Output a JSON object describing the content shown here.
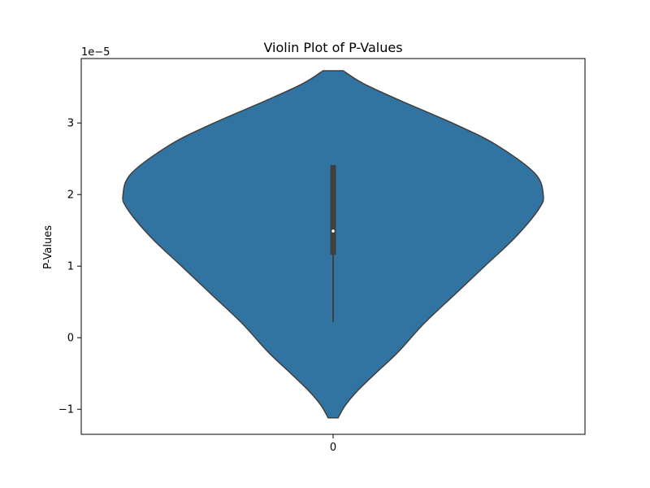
{
  "chart_data": {
    "type": "violin",
    "title": "Violin Plot of P-Values",
    "xlabel": "",
    "ylabel": "P-Values",
    "offset_label": "1e−5",
    "categories": [
      "0"
    ],
    "y_scale": 1e-05,
    "ylim": [
      -1.35,
      3.9
    ],
    "yticks": [
      -1,
      0,
      1,
      2,
      3
    ],
    "ytick_labels": [
      "−1",
      "0",
      "1",
      "2",
      "3"
    ],
    "xtick_labels": [
      "0"
    ],
    "violin": {
      "fill": "#3274a1",
      "stroke": "#3f3f3f",
      "min": -1.12,
      "max": 3.73,
      "max_half_width": 0.43,
      "profile": [
        [
          -1.12,
          0.023
        ],
        [
          -0.95,
          0.055
        ],
        [
          -0.75,
          0.11
        ],
        [
          -0.5,
          0.195
        ],
        [
          -0.2,
          0.3
        ],
        [
          0.2,
          0.42
        ],
        [
          0.6,
          0.56
        ],
        [
          1.0,
          0.7
        ],
        [
          1.4,
          0.84
        ],
        [
          1.8,
          0.95
        ],
        [
          2.0,
          0.97
        ],
        [
          2.3,
          0.93
        ],
        [
          2.7,
          0.75
        ],
        [
          3.0,
          0.55
        ],
        [
          3.3,
          0.32
        ],
        [
          3.55,
          0.14
        ],
        [
          3.73,
          0.047
        ]
      ]
    },
    "box": {
      "q1": 1.16,
      "median": 1.49,
      "q3": 2.41,
      "whisker_low": 0.22,
      "whisker_high": 2.41,
      "color": "#3f3f3f",
      "median_color": "#ffffff"
    }
  }
}
